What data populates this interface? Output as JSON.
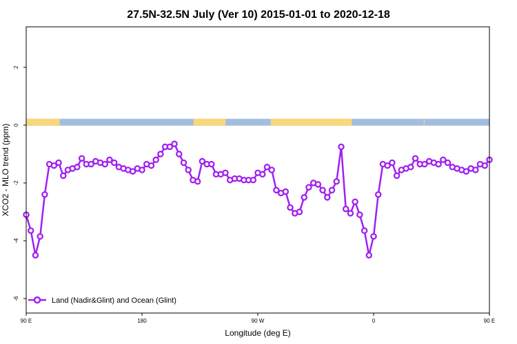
{
  "chart_data": {
    "type": "line",
    "title": "27.5N-32.5N July (Ver 10)   2015-01-01 to 2020-12-18",
    "xlabel": "Longitude (deg E)",
    "ylabel": "XCO2 - MLO trend (ppm)",
    "xlim": [
      90,
      450
    ],
    "ylim": [
      -6.5,
      3.4
    ],
    "x_ticks": [
      {
        "value": 90,
        "label": "90 E"
      },
      {
        "value": 180,
        "label": "180"
      },
      {
        "value": 270,
        "label": "90 W"
      },
      {
        "value": 360,
        "label": "0"
      },
      {
        "value": 450,
        "label": "90 E"
      },
      {
        "value": 540,
        "label": "180"
      }
    ],
    "y_ticks": [
      {
        "value": 2,
        "label": "2"
      },
      {
        "value": 0,
        "label": "0"
      },
      {
        "value": -2,
        "label": "-2"
      },
      {
        "value": -4,
        "label": "-4"
      },
      {
        "value": -6,
        "label": "-6"
      }
    ],
    "grid": false,
    "legend_position": "bottom-left",
    "series": [
      {
        "name": "Land (Nadir&Glint) and Ocean (Glint)",
        "color": "#a020f0",
        "x": [
          90,
          93.6,
          97.2,
          100.8,
          104.4,
          108,
          111.6,
          115.2,
          118.8,
          122.4,
          126,
          129.6,
          133.2,
          136.8,
          140.4,
          144,
          147.6,
          151.2,
          154.8,
          158.4,
          162,
          165.6,
          169.2,
          172.8,
          176.4,
          180,
          183.6,
          187.2,
          190.8,
          194.4,
          198,
          201.6,
          205.2,
          208.8,
          212.4,
          216,
          219.6,
          223.2,
          226.8,
          230.4,
          234,
          237.6,
          241.2,
          244.8,
          248.4,
          252,
          255.6,
          259.2,
          262.8,
          266.4,
          270,
          273.6,
          277.2,
          280.8,
          284.4,
          288,
          291.6,
          295.2,
          298.8,
          302.4,
          306,
          309.6,
          313.2,
          316.8,
          320.4,
          324,
          327.6,
          331.2,
          334.8,
          338.4,
          342,
          345.6,
          349.2,
          352.8,
          356.4,
          360,
          363.6,
          367.2,
          370.8,
          374.4,
          378,
          381.6,
          385.2,
          388.8,
          392.4,
          396,
          399.6,
          403.2,
          406.8,
          410.4,
          414,
          417.6,
          421.2,
          424.8,
          428.4,
          432,
          435.6,
          439.2,
          442.8,
          446.4,
          450
        ],
        "values": [
          -3.1,
          -3.65,
          -4.5,
          -3.85,
          -2.4,
          -1.35,
          -1.4,
          -1.3,
          -1.75,
          -1.55,
          -1.5,
          -1.45,
          -1.15,
          -1.35,
          -1.35,
          -1.25,
          -1.3,
          -1.35,
          -1.2,
          -1.3,
          -1.45,
          -1.5,
          -1.55,
          -1.6,
          -1.5,
          -1.55,
          -1.35,
          -1.4,
          -1.2,
          -1.0,
          -0.75,
          -0.75,
          -0.65,
          -1.0,
          -1.3,
          -1.55,
          -1.9,
          -1.95,
          -1.25,
          -1.35,
          -1.35,
          -1.7,
          -1.7,
          -1.65,
          -1.9,
          -1.85,
          -1.85,
          -1.9,
          -1.9,
          -1.9,
          -1.65,
          -1.7,
          -1.45,
          -1.55,
          -2.25,
          -2.35,
          -2.3,
          -2.85,
          -3.05,
          -3.0,
          -2.5,
          -2.15,
          -2.0,
          -2.05,
          -2.25,
          -2.5,
          -2.25,
          -1.95,
          -0.75,
          -2.9,
          -3.05,
          -2.65,
          -3.1,
          -3.65,
          -4.5,
          -3.85,
          -2.4,
          -1.35,
          -1.4,
          -1.3,
          -1.75,
          -1.55,
          -1.5,
          -1.45,
          -1.15,
          -1.35,
          -1.35,
          -1.25,
          -1.3,
          -1.35,
          -1.2,
          -1.3,
          -1.45,
          -1.5,
          -1.55,
          -1.6,
          -1.5,
          -1.55,
          -1.35,
          -1.4,
          -1.2
        ]
      }
    ],
    "surface_strip": {
      "y_value": 0.1,
      "land_color": "#f8d878",
      "ocean_color": "#a3bde0",
      "land_ranges": [
        [
          90,
          116
        ],
        [
          220,
          245
        ],
        [
          280,
          343
        ],
        [
          399,
          399.5
        ]
      ]
    }
  }
}
